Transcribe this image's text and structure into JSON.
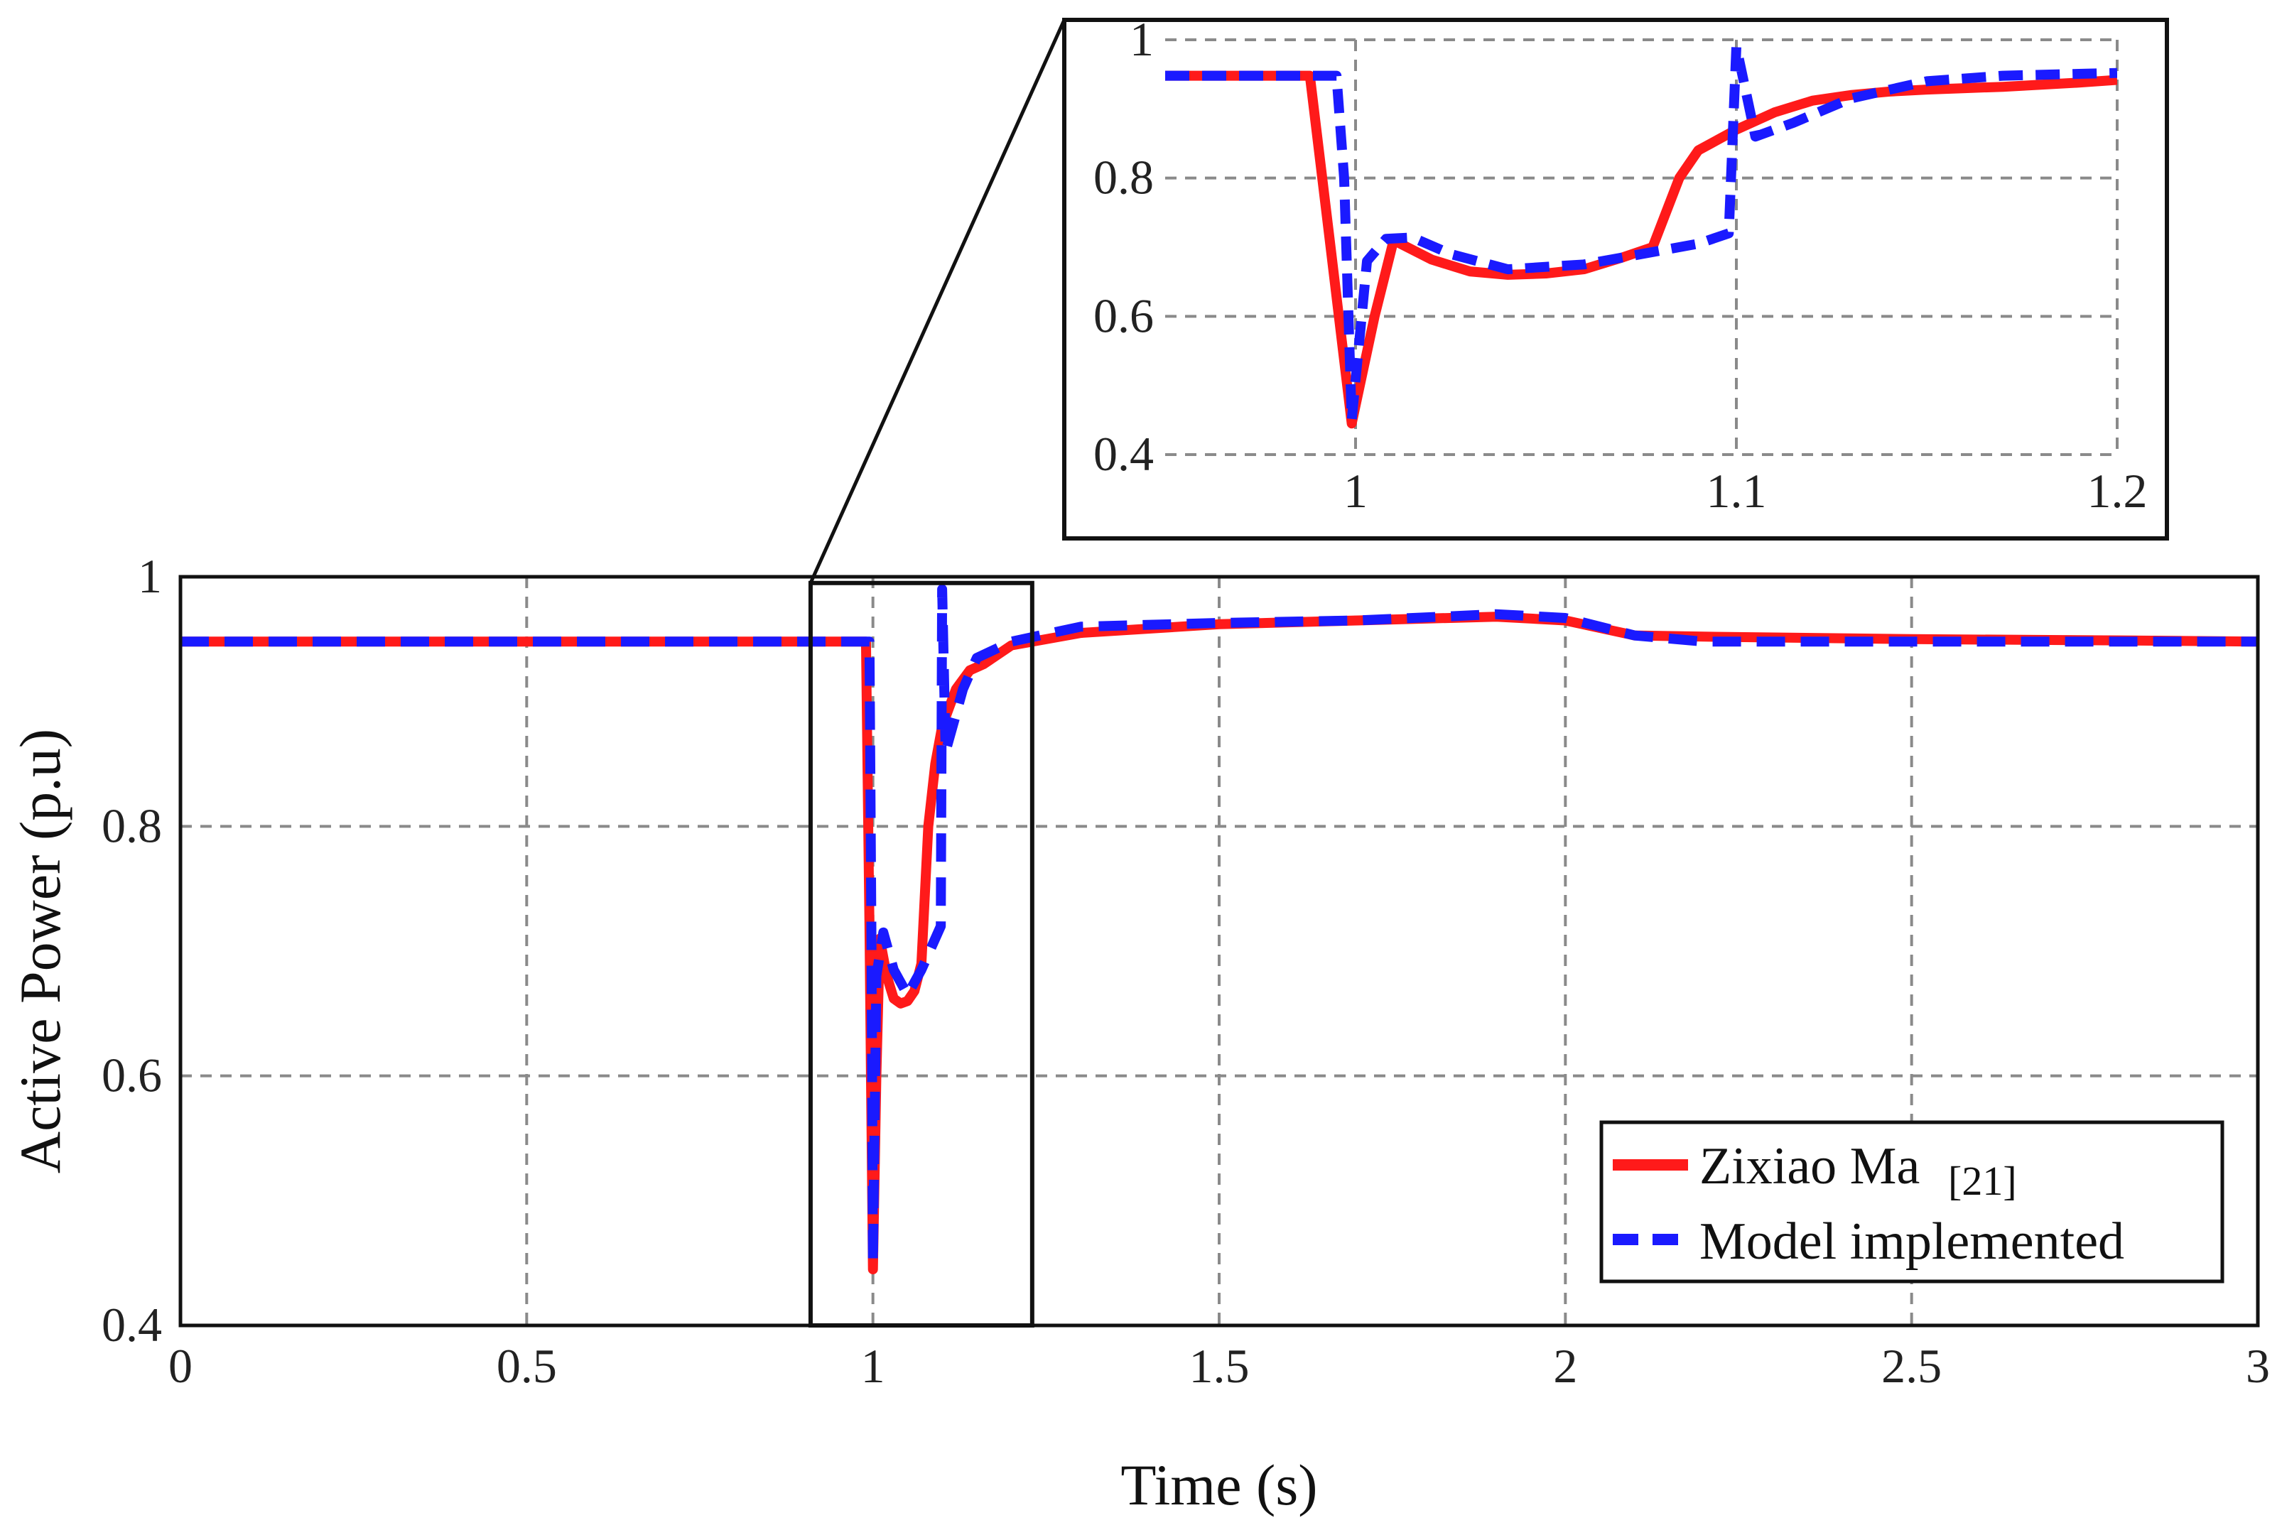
{
  "chart_data": [
    {
      "id": "main",
      "type": "line",
      "xlabel": "Time (s)",
      "ylabel": "Active Power (p.u)",
      "xlim": [
        0,
        3
      ],
      "ylim": [
        0.4,
        1
      ],
      "xticks": [
        "0",
        "0.5",
        "1",
        "1.5",
        "2",
        "2.5",
        "3"
      ],
      "xtick_values": [
        0,
        0.5,
        1,
        1.5,
        2,
        2.5,
        3
      ],
      "yticks": [
        "0.4",
        "0.6",
        "0.8",
        "1"
      ],
      "ytick_values": [
        0.4,
        0.6,
        0.8,
        1
      ],
      "grid": true,
      "legend_position": "bottom-right",
      "legend": [
        {
          "label": "Zixiao Ma",
          "ref": "[21]",
          "color": "#ff1a1a",
          "style": "solid"
        },
        {
          "label": "Model implemented",
          "ref": "",
          "color": "#1a1aff",
          "style": "dashed"
        }
      ],
      "zoom_box": {
        "x": [
          0.91,
          1.23
        ],
        "y": [
          0.4,
          0.995
        ]
      },
      "series": [
        {
          "legend_index": 0,
          "color": "#ff1a1a",
          "style": "solid",
          "x": [
            0,
            0.99,
            0.995,
            1.0,
            1.005,
            1.01,
            1.02,
            1.03,
            1.04,
            1.05,
            1.06,
            1.07,
            1.08,
            1.09,
            1.1,
            1.12,
            1.14,
            1.16,
            1.2,
            1.3,
            1.5,
            1.7,
            1.9,
            2.0,
            2.1,
            2.2,
            2.5,
            2.8,
            3.0
          ],
          "y": [
            0.948,
            0.948,
            0.72,
            0.445,
            0.6,
            0.71,
            0.68,
            0.662,
            0.658,
            0.66,
            0.668,
            0.69,
            0.8,
            0.85,
            0.88,
            0.91,
            0.925,
            0.93,
            0.945,
            0.955,
            0.962,
            0.965,
            0.968,
            0.965,
            0.953,
            0.952,
            0.95,
            0.949,
            0.948
          ]
        },
        {
          "legend_index": 1,
          "color": "#1a1aff",
          "style": "dashed",
          "x": [
            0,
            0.995,
            0.998,
            1.0,
            1.005,
            1.015,
            1.03,
            1.05,
            1.07,
            1.09,
            1.098,
            1.1,
            1.105,
            1.115,
            1.13,
            1.15,
            1.2,
            1.3,
            1.5,
            1.7,
            1.9,
            2.0,
            2.1,
            2.2,
            2.5,
            2.8,
            3.0
          ],
          "y": [
            0.948,
            0.948,
            0.7,
            0.45,
            0.68,
            0.715,
            0.685,
            0.665,
            0.685,
            0.71,
            0.72,
            0.99,
            0.86,
            0.88,
            0.91,
            0.935,
            0.948,
            0.96,
            0.963,
            0.965,
            0.97,
            0.967,
            0.953,
            0.948,
            0.948,
            0.948,
            0.948
          ]
        }
      ]
    },
    {
      "id": "inset",
      "type": "line",
      "xlim": [
        0.95,
        1.2
      ],
      "ylim": [
        0.4,
        1
      ],
      "xticks": [
        "1",
        "1.1",
        "1.2"
      ],
      "xtick_values": [
        1,
        1.1,
        1.2
      ],
      "yticks": [
        "0.4",
        "0.6",
        "0.8",
        "1"
      ],
      "ytick_values": [
        0.4,
        0.6,
        0.8,
        1
      ],
      "grid": true,
      "series": [
        {
          "legend_index": 0,
          "color": "#ff1a1a",
          "style": "solid",
          "x": [
            0.95,
            0.988,
            0.993,
            0.999,
            1.005,
            1.01,
            1.02,
            1.03,
            1.04,
            1.05,
            1.06,
            1.07,
            1.078,
            1.085,
            1.09,
            1.1,
            1.11,
            1.12,
            1.13,
            1.14,
            1.15,
            1.16,
            1.17,
            1.18,
            1.19,
            1.2
          ],
          "y": [
            0.948,
            0.948,
            0.72,
            0.445,
            0.6,
            0.71,
            0.682,
            0.665,
            0.66,
            0.662,
            0.668,
            0.685,
            0.7,
            0.8,
            0.84,
            0.87,
            0.895,
            0.912,
            0.92,
            0.925,
            0.928,
            0.93,
            0.932,
            0.935,
            0.938,
            0.942
          ]
        },
        {
          "legend_index": 1,
          "color": "#1a1aff",
          "style": "dashed",
          "x": [
            0.95,
            0.995,
            0.997,
            0.999,
            1.003,
            1.008,
            1.015,
            1.025,
            1.04,
            1.06,
            1.08,
            1.09,
            1.098,
            1.1,
            1.105,
            1.115,
            1.13,
            1.15,
            1.17,
            1.2
          ],
          "y": [
            0.948,
            0.948,
            0.8,
            0.45,
            0.68,
            0.712,
            0.714,
            0.69,
            0.668,
            0.675,
            0.695,
            0.705,
            0.72,
            0.99,
            0.86,
            0.88,
            0.915,
            0.94,
            0.948,
            0.952
          ]
        }
      ]
    }
  ]
}
